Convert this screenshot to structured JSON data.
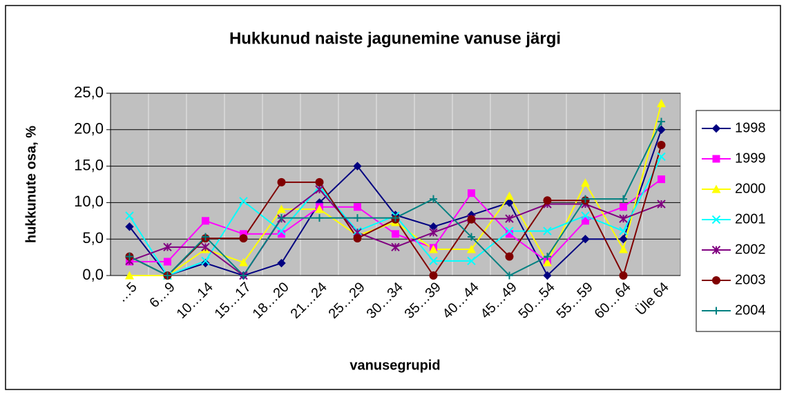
{
  "chart_data": {
    "type": "line",
    "title": "Hukkunud naiste jagunemine vanuse järgi",
    "x_label": "vanusegrupid",
    "y_label": "hukkunute osa, %",
    "categories": [
      "…5",
      "6…9",
      "10…14",
      "15…17",
      "18…20",
      "21…24",
      "25…29",
      "30…34",
      "35…39",
      "40…44",
      "45…49",
      "50…54",
      "55…59",
      "60…64",
      "Üle 64"
    ],
    "ylim": [
      0,
      25
    ],
    "yticks": [
      {
        "value": 0,
        "label": "0,0"
      },
      {
        "value": 5,
        "label": "5,0"
      },
      {
        "value": 10,
        "label": "10,0"
      },
      {
        "value": 15,
        "label": "15,0"
      },
      {
        "value": 20,
        "label": "20,0"
      },
      {
        "value": 25,
        "label": "25,0"
      }
    ],
    "grid": true,
    "legend": "right",
    "series": [
      {
        "name": "1998",
        "color": "#000080",
        "marker": "diamond",
        "values": [
          6.7,
          0,
          1.7,
          0,
          1.7,
          10,
          15,
          8.3,
          6.7,
          8.3,
          10,
          0,
          5,
          5,
          20
        ]
      },
      {
        "name": "1999",
        "color": "#ff00ff",
        "marker": "square",
        "values": [
          1.9,
          1.9,
          7.5,
          5.7,
          5.7,
          9.4,
          9.4,
          5.7,
          3.8,
          11.3,
          5.7,
          1.9,
          7.5,
          9.4,
          13.2
        ]
      },
      {
        "name": "2000",
        "color": "#ffff00",
        "marker": "triangle",
        "values": [
          0,
          0,
          3.6,
          1.8,
          9.1,
          9.1,
          5.5,
          7.3,
          3.6,
          3.6,
          10.9,
          1.8,
          12.7,
          3.6,
          23.6
        ]
      },
      {
        "name": "2001",
        "color": "#00ffff",
        "marker": "x",
        "values": [
          8.2,
          0,
          2,
          10.2,
          6.1,
          12.2,
          6.1,
          8.2,
          2,
          2,
          6.1,
          6.1,
          8.2,
          6.1,
          16.3
        ]
      },
      {
        "name": "2002",
        "color": "#800080",
        "marker": "star",
        "values": [
          2,
          3.9,
          3.9,
          0,
          7.8,
          11.8,
          5.9,
          3.9,
          5.9,
          7.8,
          7.8,
          9.8,
          9.8,
          7.8,
          9.8
        ]
      },
      {
        "name": "2003",
        "color": "#800000",
        "marker": "circle",
        "values": [
          2.6,
          0,
          5.1,
          5.1,
          12.8,
          12.8,
          5.1,
          7.7,
          0,
          7.7,
          2.6,
          10.3,
          10.3,
          0,
          17.9
        ]
      },
      {
        "name": "2004",
        "color": "#008080",
        "marker": "plus",
        "values": [
          2.6,
          0,
          5.3,
          0,
          7.9,
          7.9,
          7.9,
          7.9,
          10.5,
          5.3,
          0,
          2.6,
          10.5,
          10.5,
          21.1
        ]
      }
    ]
  }
}
